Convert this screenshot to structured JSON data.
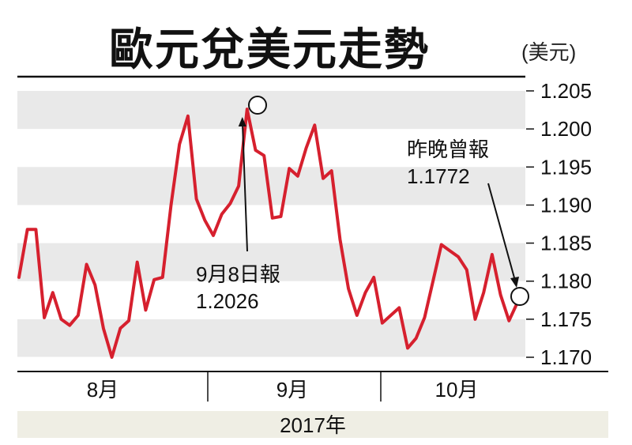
{
  "title": "歐元兌美元走勢",
  "unit": "(美元)",
  "colors": {
    "line": "#d6202e",
    "band": "#e9e9e9",
    "yearbar": "#efeee4"
  },
  "chart_data": {
    "type": "line",
    "title": "歐元兌美元走勢",
    "ylabel": "(美元)",
    "ylim": [
      1.168,
      1.206
    ],
    "yticks": [
      "1.205",
      "1.200",
      "1.195",
      "1.190",
      "1.185",
      "1.180",
      "1.175",
      "1.170"
    ],
    "ytick_values": [
      1.205,
      1.2,
      1.195,
      1.19,
      1.185,
      1.18,
      1.175,
      1.17
    ],
    "months": [
      "8月",
      "9月",
      "10月"
    ],
    "year": "2017年",
    "series": [
      {
        "values": [
          1.1805,
          1.1868,
          1.1868,
          1.1752,
          1.1785,
          1.175,
          1.1742,
          1.1755,
          1.1822,
          1.1795,
          1.1738,
          1.17,
          1.1738,
          1.1748,
          1.1825,
          1.1762,
          1.1802,
          1.1805,
          1.19,
          1.198,
          1.2017,
          1.1908,
          1.188,
          1.186,
          1.1888,
          1.1902,
          1.1925,
          1.2026,
          1.1972,
          1.1965,
          1.1883,
          1.1885,
          1.1948,
          1.1938,
          1.1975,
          1.2005,
          1.1935,
          1.1945,
          1.1855,
          1.179,
          1.1755,
          1.1785,
          1.1805,
          1.1745,
          1.1755,
          1.1765,
          1.1712,
          1.1725,
          1.1752,
          1.18,
          1.1848,
          1.184,
          1.1832,
          1.1815,
          1.175,
          1.1785,
          1.1835,
          1.1782,
          1.1748,
          1.1772
        ]
      }
    ],
    "annotations": [
      {
        "label": "9月8日報",
        "value": "1.2026",
        "index": 27
      },
      {
        "label": "昨晚曾報",
        "value": "1.1772",
        "index": 59
      }
    ]
  }
}
